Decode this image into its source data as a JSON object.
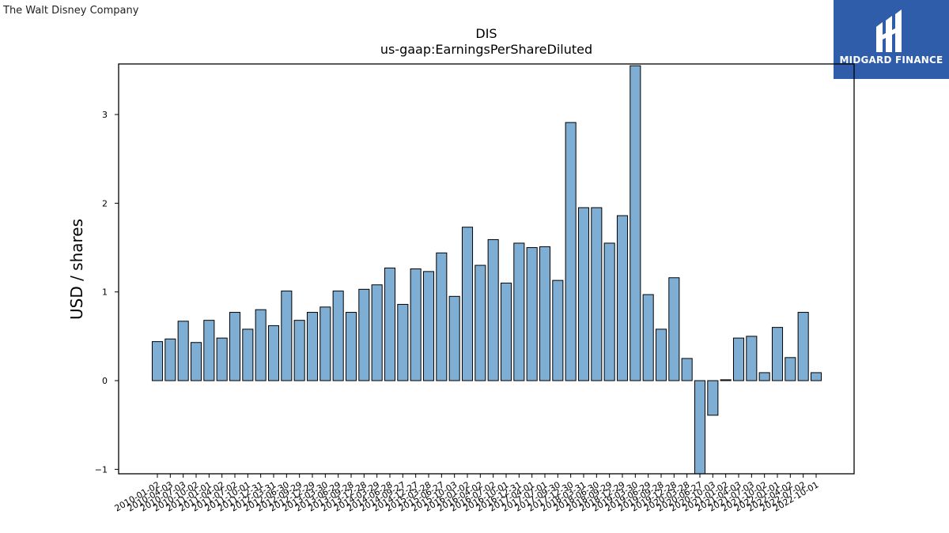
{
  "logos": {
    "company": "The Walt Disney Company",
    "brand": "MIDGARD FINANCE"
  },
  "colors": {
    "bar_fill": "#7eaed3",
    "bar_edge": "#000000",
    "brand_background": "#2f5daa"
  },
  "chart_data": {
    "type": "bar",
    "title": "DIS",
    "subtitle": "us-gaap:EarningsPerShareDiluted",
    "xlabel": "",
    "ylabel": "USD / shares",
    "ylim": [
      -1.05,
      3.57
    ],
    "yticks": [
      -1,
      0,
      1,
      2,
      3
    ],
    "grid": false,
    "categories": [
      "2010-01-02",
      "2010-04-03",
      "2010-07-03",
      "2010-10-02",
      "2011-01-01",
      "2011-04-02",
      "2011-07-02",
      "2011-10-01",
      "2011-12-31",
      "2012-03-31",
      "2012-06-30",
      "2012-09-29",
      "2012-12-29",
      "2013-03-30",
      "2013-06-29",
      "2013-09-28",
      "2013-12-28",
      "2014-03-29",
      "2014-06-28",
      "2014-09-27",
      "2014-12-27",
      "2015-03-28",
      "2015-06-27",
      "2015-10-03",
      "2016-01-02",
      "2016-04-02",
      "2016-07-02",
      "2016-10-01",
      "2016-12-31",
      "2017-04-01",
      "2017-07-01",
      "2017-09-30",
      "2017-12-30",
      "2018-03-31",
      "2018-06-30",
      "2018-09-29",
      "2018-12-29",
      "2019-03-30",
      "2019-06-29",
      "2019-09-28",
      "2019-12-28",
      "2020-03-28",
      "2020-06-27",
      "2020-10-03",
      "2021-01-02",
      "2021-04-03",
      "2021-07-03",
      "2021-10-02",
      "2022-01-01",
      "2022-04-02",
      "2022-07-02",
      "2022-10-01"
    ],
    "values": [
      0.44,
      0.47,
      0.67,
      0.43,
      0.68,
      0.48,
      0.77,
      0.58,
      0.8,
      0.62,
      1.01,
      0.68,
      0.77,
      0.83,
      1.01,
      0.77,
      1.03,
      1.08,
      1.27,
      0.86,
      1.26,
      1.23,
      1.44,
      0.95,
      1.73,
      1.3,
      1.59,
      1.1,
      1.55,
      1.5,
      1.51,
      1.13,
      2.91,
      1.95,
      1.95,
      1.55,
      1.86,
      3.55,
      0.97,
      0.58,
      1.16,
      0.25,
      -1.05,
      -0.39,
      0.01,
      0.48,
      0.5,
      0.09,
      0.6,
      0.26,
      0.77,
      0.09
    ]
  }
}
